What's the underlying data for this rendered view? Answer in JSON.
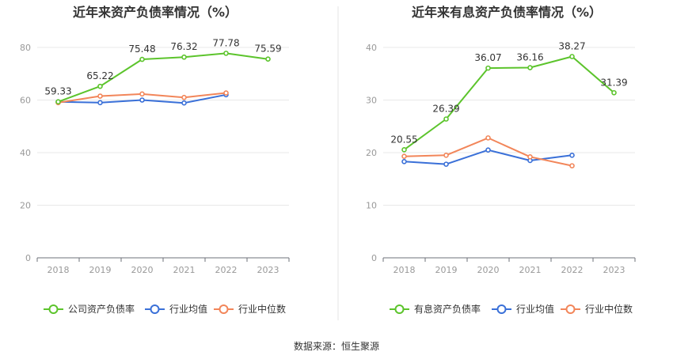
{
  "source": "数据来源：恒生聚源",
  "chart_data": [
    {
      "type": "line",
      "title": "近年来资产负债率情况（%）",
      "categories": [
        "2018",
        "2019",
        "2020",
        "2021",
        "2022",
        "2023"
      ],
      "ylim": [
        0,
        80
      ],
      "yticks": [
        0,
        20,
        40,
        60,
        80
      ],
      "grid": true,
      "legend_position": "bottom",
      "series": [
        {
          "name": "公司资产负债率",
          "color": "#5cc42c",
          "values": [
            59.33,
            65.22,
            75.48,
            76.32,
            77.78,
            75.59
          ],
          "labels": [
            "59.33",
            "65.22",
            "75.48",
            "76.32",
            "77.78",
            "75.59"
          ]
        },
        {
          "name": "行业均值",
          "color": "#3a70d8",
          "values": [
            59.3,
            59.0,
            60.0,
            58.9,
            62.0,
            null
          ]
        },
        {
          "name": "行业中位数",
          "color": "#f2865a",
          "values": [
            59.0,
            61.5,
            62.3,
            61.0,
            62.7,
            null
          ]
        }
      ]
    },
    {
      "type": "line",
      "title": "近年来有息资产负债率情况（%）",
      "categories": [
        "2018",
        "2019",
        "2020",
        "2021",
        "2022",
        "2023"
      ],
      "ylim": [
        0,
        40
      ],
      "yticks": [
        0,
        10,
        20,
        30,
        40
      ],
      "grid": true,
      "legend_position": "bottom",
      "series": [
        {
          "name": "有息资产负债率",
          "color": "#5cc42c",
          "values": [
            20.55,
            26.39,
            36.07,
            36.16,
            38.27,
            31.39
          ],
          "labels": [
            "20.55",
            "26.39",
            "36.07",
            "36.16",
            "38.27",
            "31.39"
          ]
        },
        {
          "name": "行业均值",
          "color": "#3a70d8",
          "values": [
            18.3,
            17.8,
            20.5,
            18.5,
            19.5,
            null
          ]
        },
        {
          "name": "行业中位数",
          "color": "#f2865a",
          "values": [
            19.3,
            19.5,
            22.8,
            19.2,
            17.5,
            null
          ]
        }
      ]
    }
  ]
}
